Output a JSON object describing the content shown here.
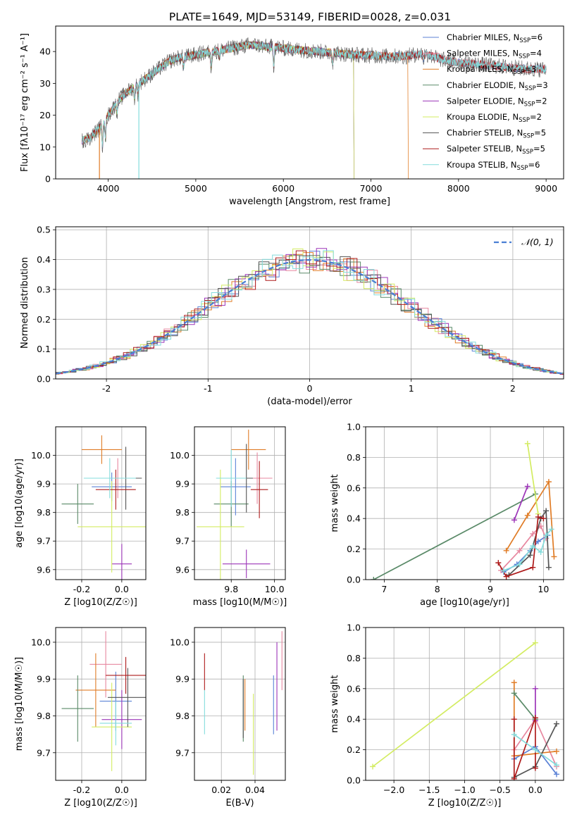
{
  "figure": {
    "title": "PLATE=1649, MJD=53149, FIBERID=0028, z=0.031"
  },
  "colors": [
    "#5b82d6",
    "#e7879f",
    "#e07c26",
    "#5a8a68",
    "#9c34b8",
    "#d3ec62",
    "#555555",
    "#ae1b1b",
    "#84dcdc"
  ],
  "chart_data": [
    {
      "id": "spectrum",
      "type": "line",
      "xlabel": "wavelength [Angstrom, rest frame]",
      "ylabel": "Flux [fλ10⁻¹⁷ erg cm⁻² s⁻¹ A⁻¹]",
      "xlim": [
        3400,
        9200
      ],
      "ylim": [
        0,
        48
      ],
      "xticks": [
        4000,
        5000,
        6000,
        7000,
        8000,
        9000
      ],
      "yticks": [
        0,
        10,
        20,
        30,
        40
      ],
      "grid": false,
      "legend_position": "top-right",
      "continuum": {
        "x": [
          3700,
          3800,
          3900,
          4000,
          4100,
          4200,
          4300,
          4400,
          4500,
          4600,
          4700,
          4800,
          4900,
          5000,
          5100,
          5200,
          5300,
          5400,
          5500,
          5600,
          5700,
          5800,
          5900,
          6000,
          6200,
          6400,
          6600,
          6800,
          7000,
          7200,
          7400,
          7600,
          7800,
          8000,
          8200,
          8400,
          8600,
          8800,
          9000
        ],
        "y": [
          12,
          13,
          16,
          20,
          24,
          27,
          29,
          31,
          33,
          35,
          37,
          38,
          38.5,
          39,
          39.5,
          40,
          40.5,
          41,
          41.5,
          42,
          42,
          41.5,
          41.5,
          41,
          40.5,
          40,
          39.5,
          39,
          38.8,
          38.5,
          38.5,
          39.5,
          37.5,
          36.5,
          36,
          35.5,
          35,
          34.5,
          34.5
        ]
      },
      "series": [
        {
          "name": "Chabrier MILES, N_SSP=6",
          "xmax": 9000
        },
        {
          "name": "Salpeter MILES, N_SSP=4",
          "xmax": 9000
        },
        {
          "name": "Kroupa MILES, N_SSP=3",
          "xmax": 7420
        },
        {
          "name": "Chabrier ELODIE, N_SSP=3",
          "xmax": 6800
        },
        {
          "name": "Salpeter ELODIE, N_SSP=2",
          "xmax": 6800
        },
        {
          "name": "Kroupa ELODIE, N_SSP=2",
          "xmax": 6800
        },
        {
          "name": "Chabrier STELIB, N_SSP=5",
          "xmax": 9000
        },
        {
          "name": "Salpeter STELIB, N_SSP=5",
          "xmax": 9000
        },
        {
          "name": "Kroupa STELIB, N_SSP=6",
          "xmax": 9000
        }
      ],
      "legend_items": [
        {
          "base": "Chabrier MILES, N",
          "sub": "SSP",
          "tail": "=6"
        },
        {
          "base": "Salpeter MILES, N",
          "sub": "SSP",
          "tail": "=4"
        },
        {
          "base": "Kroupa MILES, N",
          "sub": "SSP",
          "tail": "=3"
        },
        {
          "base": "Chabrier ELODIE, N",
          "sub": "SSP",
          "tail": "=3"
        },
        {
          "base": "Salpeter ELODIE, N",
          "sub": "SSP",
          "tail": "=2"
        },
        {
          "base": "Kroupa ELODIE, N",
          "sub": "SSP",
          "tail": "=2"
        },
        {
          "base": "Chabrier STELIB, N",
          "sub": "SSP",
          "tail": "=5"
        },
        {
          "base": "Salpeter STELIB, N",
          "sub": "SSP",
          "tail": "=5"
        },
        {
          "base": "Kroupa STELIB, N",
          "sub": "SSP",
          "tail": "=6"
        }
      ]
    },
    {
      "id": "residuals",
      "type": "step-histogram",
      "xlabel": "(data-model)/error",
      "ylabel": "Normed distribution",
      "xlim": [
        -2.5,
        2.5
      ],
      "ylim": [
        0,
        0.51
      ],
      "xticks": [
        -2,
        -1,
        0,
        1,
        2
      ],
      "yticks": [
        0.0,
        0.1,
        0.2,
        0.3,
        0.4,
        0.5
      ],
      "grid": true,
      "bin_width": 0.1,
      "reference_curve": {
        "name": "𝒩(0, 1)",
        "type": "gaussian",
        "mean": 0,
        "sigma": 1,
        "style": "dashed"
      },
      "legend_position": "top-right"
    },
    {
      "id": "age-vs-Z",
      "type": "errorbar",
      "xlabel": "Z [log10(Z/Z☉)]",
      "ylabel": "age  [log10(age/yr)]",
      "xlim": [
        -0.33,
        0.12
      ],
      "ylim": [
        9.565,
        10.1
      ],
      "xticks": [
        -0.2,
        0.0
      ],
      "yticks": [
        9.6,
        9.7,
        9.8,
        9.9,
        10.0
      ],
      "grid": true,
      "points": [
        {
          "x": -0.05,
          "xerr": 0.1,
          "y": 9.89,
          "yerr": 0.05
        },
        {
          "x": -0.02,
          "xerr": 0.08,
          "y": 9.92,
          "yerr": 0.07
        },
        {
          "x": -0.1,
          "xerr": 0.1,
          "y": 10.02,
          "yerr": 0.05
        },
        {
          "x": -0.22,
          "xerr": 0.08,
          "y": 9.83,
          "yerr": 0.07
        },
        {
          "x": 0.0,
          "xerr": 0.05,
          "y": 9.62,
          "yerr": 0.07
        },
        {
          "x": -0.05,
          "xerr": 0.17,
          "y": 9.75,
          "yerr": 0.16
        },
        {
          "x": 0.02,
          "xerr": 0.08,
          "y": 9.92,
          "yerr": 0.11
        },
        {
          "x": -0.03,
          "xerr": 0.1,
          "y": 9.88,
          "yerr": 0.07
        },
        {
          "x": -0.06,
          "xerr": 0.13,
          "y": 9.92,
          "yerr": 0.07
        }
      ]
    },
    {
      "id": "age-vs-mass",
      "type": "errorbar",
      "xlabel": "mass [log10(M/M☉)]",
      "ylabel": "",
      "xlim": [
        9.63,
        10.05
      ],
      "ylim": [
        9.565,
        10.1
      ],
      "xticks": [
        9.8,
        10.0
      ],
      "yticks": [
        9.6,
        9.7,
        9.8,
        9.9,
        10.0
      ],
      "grid": true,
      "points": [
        {
          "x": 9.82,
          "xerr": 0.07,
          "y": 9.89,
          "yerr": 0.1
        },
        {
          "x": 9.92,
          "xerr": 0.07,
          "y": 9.92,
          "yerr": 0.09
        },
        {
          "x": 9.88,
          "xerr": 0.08,
          "y": 10.02,
          "yerr": 0.07
        },
        {
          "x": 9.8,
          "xerr": 0.08,
          "y": 9.83,
          "yerr": 0.08
        },
        {
          "x": 9.87,
          "xerr": 0.11,
          "y": 9.62,
          "yerr": 0.05
        },
        {
          "x": 9.75,
          "xerr": 0.11,
          "y": 9.75,
          "yerr": 0.2
        },
        {
          "x": 9.87,
          "xerr": 0.03,
          "y": 9.92,
          "yerr": 0.12
        },
        {
          "x": 9.93,
          "xerr": 0.04,
          "y": 9.88,
          "yerr": 0.1
        },
        {
          "x": 9.8,
          "xerr": 0.07,
          "y": 9.92,
          "yerr": 0.1
        }
      ]
    },
    {
      "id": "weight-vs-age",
      "type": "line",
      "xlabel": "age  [log10(age/yr)]",
      "ylabel": "mass weight",
      "xlim": [
        6.65,
        10.38
      ],
      "ylim": [
        0,
        1.0
      ],
      "xticks": [
        7,
        8,
        9,
        10
      ],
      "yticks": [
        0.0,
        0.2,
        0.4,
        0.6,
        0.8,
        1.0
      ],
      "grid": true,
      "series": [
        {
          "x": [
            9.25,
            9.5,
            9.75,
            9.9,
            10.08
          ],
          "y": [
            0.05,
            0.1,
            0.19,
            0.25,
            0.29
          ]
        },
        {
          "x": [
            9.2,
            9.55,
            9.8,
            9.95,
            10.05
          ],
          "y": [
            0.06,
            0.19,
            0.3,
            0.35,
            0.27
          ]
        },
        {
          "x": [
            9.3,
            9.7,
            10.1,
            10.2
          ],
          "y": [
            0.19,
            0.42,
            0.64,
            0.15
          ]
        },
        {
          "x": [
            6.8,
            9.85
          ],
          "y": [
            0.0,
            0.56
          ]
        },
        {
          "x": [
            9.45,
            9.7
          ],
          "y": [
            0.39,
            0.61
          ]
        },
        {
          "x": [
            9.7,
            9.9
          ],
          "y": [
            0.89,
            0.43
          ]
        },
        {
          "x": [
            9.35,
            9.75,
            9.95,
            10.05,
            10.1
          ],
          "y": [
            0.03,
            0.16,
            0.4,
            0.45,
            0.08
          ]
        },
        {
          "x": [
            9.15,
            9.3,
            9.8,
            9.9,
            10.0
          ],
          "y": [
            0.11,
            0.02,
            0.08,
            0.41,
            0.4
          ]
        },
        {
          "x": [
            9.25,
            9.55,
            9.8,
            9.95,
            10.05,
            10.15
          ],
          "y": [
            0.06,
            0.1,
            0.22,
            0.18,
            0.29,
            0.33
          ]
        }
      ]
    },
    {
      "id": "mass-vs-Z",
      "type": "errorbar",
      "xlabel": "Z [log10(Z/Z☉)]",
      "ylabel": "mass [log10(M/M☉)]",
      "xlim": [
        -0.33,
        0.12
      ],
      "ylim": [
        9.625,
        10.04
      ],
      "xticks": [
        -0.2,
        0.0
      ],
      "yticks": [
        9.7,
        9.8,
        9.9,
        10.0
      ],
      "grid": true,
      "points": [
        {
          "x": -0.03,
          "xerr": 0.08,
          "y": 9.84,
          "yerr": 0.08
        },
        {
          "x": -0.08,
          "xerr": 0.08,
          "y": 9.94,
          "yerr": 0.09
        },
        {
          "x": -0.13,
          "xerr": 0.1,
          "y": 9.87,
          "yerr": 0.1
        },
        {
          "x": -0.22,
          "xerr": 0.08,
          "y": 9.82,
          "yerr": 0.09
        },
        {
          "x": 0.0,
          "xerr": 0.1,
          "y": 9.79,
          "yerr": 0.08
        },
        {
          "x": -0.05,
          "xerr": 0.1,
          "y": 9.77,
          "yerr": 0.12
        },
        {
          "x": 0.03,
          "xerr": 0.1,
          "y": 9.85,
          "yerr": 0.08
        },
        {
          "x": 0.02,
          "xerr": 0.1,
          "y": 9.91,
          "yerr": 0.05
        },
        {
          "x": -0.03,
          "xerr": 0.08,
          "y": 9.78,
          "yerr": 0.06
        }
      ]
    },
    {
      "id": "mass-vs-EBV",
      "type": "errorbar",
      "xlabel": "E(B-V)",
      "ylabel": "",
      "xlim": [
        0.004,
        0.058
      ],
      "ylim": [
        9.625,
        10.04
      ],
      "xticks": [
        0.02,
        0.04
      ],
      "yticks": [
        9.7,
        9.8,
        9.9,
        10.0
      ],
      "grid": true,
      "points": [
        {
          "x": 0.051,
          "xerr": 0,
          "y": 9.83,
          "yerr": 0.08
        },
        {
          "x": 0.056,
          "xerr": 0,
          "y": 9.95,
          "yerr": 0.08
        },
        {
          "x": 0.034,
          "xerr": 0,
          "y": 9.83,
          "yerr": 0.07
        },
        {
          "x": 0.033,
          "xerr": 0,
          "y": 9.82,
          "yerr": 0.09
        },
        {
          "x": 0.053,
          "xerr": 0,
          "y": 9.88,
          "yerr": 0.12
        },
        {
          "x": 0.039,
          "xerr": 0,
          "y": 9.75,
          "yerr": 0.11
        },
        {
          "x": 0.033,
          "xerr": 0,
          "y": 9.82,
          "yerr": 0.08
        },
        {
          "x": 0.01,
          "xerr": 0,
          "y": 9.92,
          "yerr": 0.05
        },
        {
          "x": 0.01,
          "xerr": 0,
          "y": 9.81,
          "yerr": 0.06
        }
      ]
    },
    {
      "id": "weight-vs-Z",
      "type": "line",
      "xlabel": "Z [log10(Z/Z☉)]",
      "ylabel": "mass weight",
      "xlim": [
        -2.4,
        0.4
      ],
      "ylim": [
        0,
        1.0
      ],
      "xticks": [
        -2.0,
        -1.5,
        -1.0,
        -0.5,
        0.0
      ],
      "yticks": [
        0.0,
        0.2,
        0.4,
        0.6,
        0.8,
        1.0
      ],
      "grid": true,
      "series": [
        {
          "x": [
            -0.3,
            0.0,
            0.3
          ],
          "y": [
            0.14,
            0.22,
            0.04
          ]
        },
        {
          "x": [
            -0.3,
            0.0,
            0.3
          ],
          "y": [
            0.2,
            0.4,
            0.09
          ]
        },
        {
          "x": [
            -0.3,
            -0.3,
            0.3
          ],
          "y": [
            0.64,
            0.16,
            0.19
          ]
        },
        {
          "x": [
            -0.3,
            0.0
          ],
          "y": [
            0.57,
            0.4
          ]
        },
        {
          "x": [
            0.0,
            0.0
          ],
          "y": [
            0.6,
            0.39
          ]
        },
        {
          "x": [
            -2.3,
            0.0
          ],
          "y": [
            0.09,
            0.9
          ]
        },
        {
          "x": [
            -0.3,
            0.0,
            0.3
          ],
          "y": [
            0.02,
            0.09,
            0.37
          ]
        },
        {
          "x": [
            -0.3,
            -0.3,
            0.0,
            0.0
          ],
          "y": [
            0.4,
            0.01,
            0.41,
            0.08
          ]
        },
        {
          "x": [
            -0.3,
            0.0,
            0.3
          ],
          "y": [
            0.3,
            0.2,
            0.1
          ]
        }
      ]
    }
  ]
}
